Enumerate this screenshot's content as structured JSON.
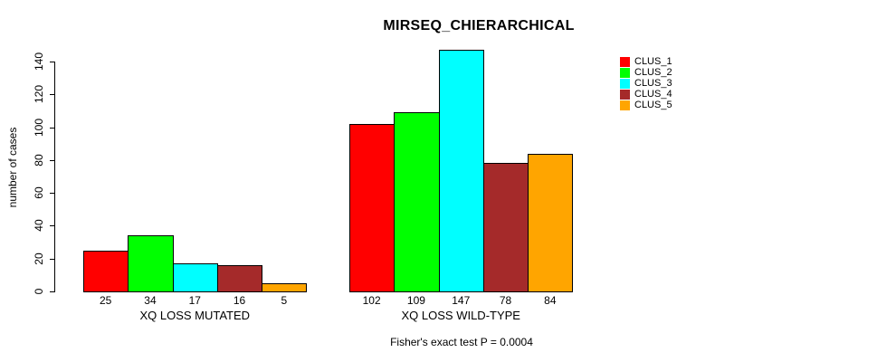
{
  "chart_data": {
    "type": "bar",
    "title": "MIRSEQ_CHIERARCHICAL",
    "ylabel": "number of cases",
    "caption": "Fisher's exact test P = 0.0004",
    "ylim": [
      0,
      140
    ],
    "yticks": [
      0,
      20,
      40,
      60,
      80,
      100,
      120,
      140
    ],
    "grid": false,
    "legend_position": "right-outside",
    "categories": [
      "XQ LOSS MUTATED",
      "XQ LOSS WILD-TYPE"
    ],
    "series": [
      {
        "name": "CLUS_1",
        "color": "#FF0000",
        "values": [
          25,
          102
        ]
      },
      {
        "name": "CLUS_2",
        "color": "#00FF00",
        "values": [
          34,
          109
        ]
      },
      {
        "name": "CLUS_3",
        "color": "#00FFFF",
        "values": [
          17,
          147
        ]
      },
      {
        "name": "CLUS_4",
        "color": "#A52A2A",
        "values": [
          16,
          78
        ]
      },
      {
        "name": "CLUS_5",
        "color": "#FFA500",
        "values": [
          5,
          84
        ]
      }
    ],
    "groups": [
      {
        "label": "XQ LOSS MUTATED",
        "values": [
          25,
          34,
          17,
          16,
          5
        ]
      },
      {
        "label": "XQ LOSS WILD-TYPE",
        "values": [
          102,
          109,
          147,
          78,
          84
        ]
      }
    ],
    "bar_value_labels_shown": true,
    "legend": [
      {
        "label": "CLUS_1",
        "color": "#FF0000"
      },
      {
        "label": "CLUS_2",
        "color": "#00FF00"
      },
      {
        "label": "CLUS_3",
        "color": "#00FFFF"
      },
      {
        "label": "CLUS_4",
        "color": "#A52A2A"
      },
      {
        "label": "CLUS_5",
        "color": "#FFA500"
      }
    ]
  }
}
